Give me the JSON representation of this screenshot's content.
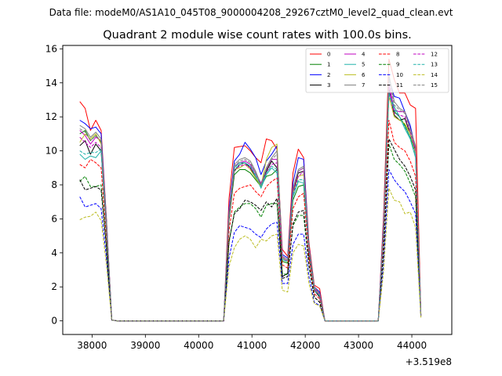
{
  "chart_data": {
    "type": "line",
    "suptitle": "Data file: modeM0/AS1A10_045T08_9000004208_29267cztM0_level2_quad_clean.evt",
    "title": "Quadrant 2 module wise count rates with 100.0s bins.",
    "xlabel": "",
    "ylabel": "",
    "x_offset_label": "+3.519e8",
    "xlim": [
      37450,
      44750
    ],
    "ylim": [
      -0.8,
      16.2
    ],
    "xticks": [
      38000,
      39000,
      40000,
      41000,
      42000,
      43000,
      44000
    ],
    "xtick_labels": [
      "38000",
      "39000",
      "40000",
      "41000",
      "42000",
      "43000",
      "44000"
    ],
    "yticks": [
      0,
      2,
      4,
      6,
      8,
      10,
      12,
      14,
      16
    ],
    "ytick_labels": [
      "0",
      "2",
      "4",
      "6",
      "8",
      "10",
      "12",
      "14",
      "16"
    ],
    "legend_position": "upper right",
    "legend_columns": 4,
    "x": [
      37770,
      37870,
      37970,
      38070,
      38170,
      38270,
      38370,
      38470,
      38570,
      38670,
      38770,
      38870,
      38970,
      39070,
      39170,
      39270,
      39370,
      39470,
      39570,
      39670,
      39770,
      39870,
      39970,
      40070,
      40170,
      40270,
      40370,
      40470,
      40570,
      40670,
      40770,
      40870,
      40970,
      41070,
      41170,
      41270,
      41370,
      41470,
      41570,
      41670,
      41770,
      41870,
      41970,
      42070,
      42170,
      42270,
      42370,
      42470,
      42570,
      42670,
      42770,
      42870,
      42970,
      43070,
      43170,
      43270,
      43370,
      43470,
      43570,
      43670,
      43770,
      43870,
      43970,
      44070,
      44170
    ],
    "series": [
      {
        "name": "0",
        "color": "#ff0000",
        "dash": "solid",
        "values": [
          12.9,
          12.5,
          11.2,
          11.8,
          11.2,
          6.0,
          0.05,
          0,
          0,
          0,
          0,
          0,
          0,
          0,
          0,
          0,
          0,
          0,
          0,
          0,
          0,
          0,
          0,
          0,
          0,
          0,
          0,
          0,
          7.2,
          10.2,
          10.25,
          10.3,
          10.0,
          9.6,
          9.3,
          10.7,
          10.6,
          10.1,
          4.2,
          3.8,
          8.7,
          10.1,
          9.6,
          4.6,
          2.1,
          1.9,
          0,
          0,
          0,
          0,
          0,
          0,
          0,
          0,
          0,
          0,
          0,
          6.2,
          15.4,
          14.2,
          13.4,
          13.4,
          12.7,
          12.5,
          0.4
        ]
      },
      {
        "name": "1",
        "color": "#008000",
        "dash": "solid",
        "values": [
          11.0,
          11.2,
          10.6,
          10.9,
          10.5,
          5.7,
          0.05,
          0,
          0,
          0,
          0,
          0,
          0,
          0,
          0,
          0,
          0,
          0,
          0,
          0,
          0,
          0,
          0,
          0,
          0,
          0,
          0,
          0,
          6.0,
          8.6,
          8.9,
          8.9,
          8.7,
          8.3,
          7.9,
          8.5,
          8.6,
          8.9,
          3.5,
          3.4,
          7.1,
          7.9,
          8.0,
          4.1,
          1.8,
          1.5,
          0,
          0,
          0,
          0,
          0,
          0,
          0,
          0,
          0,
          0,
          0,
          5.2,
          13.5,
          12.3,
          12.0,
          11.5,
          10.8,
          9.9,
          0.3
        ]
      },
      {
        "name": "2",
        "color": "#0000ff",
        "dash": "solid",
        "values": [
          11.8,
          11.6,
          11.3,
          11.4,
          11.0,
          5.9,
          0.05,
          0,
          0,
          0,
          0,
          0,
          0,
          0,
          0,
          0,
          0,
          0,
          0,
          0,
          0,
          0,
          0,
          0,
          0,
          0,
          0,
          0,
          6.6,
          9.4,
          9.8,
          10.5,
          10.1,
          9.6,
          8.6,
          9.4,
          9.8,
          10.3,
          3.9,
          3.7,
          8.1,
          9.6,
          9.5,
          4.4,
          2.0,
          1.7,
          0,
          0,
          0,
          0,
          0,
          0,
          0,
          0,
          0,
          0,
          0,
          5.8,
          14.3,
          13.2,
          13.1,
          12.3,
          11.5,
          10.1,
          0.35
        ]
      },
      {
        "name": "3",
        "color": "#000000",
        "dash": "solid",
        "values": [
          10.3,
          10.6,
          9.8,
          10.4,
          10.0,
          5.3,
          0.05,
          0,
          0,
          0,
          0,
          0,
          0,
          0,
          0,
          0,
          0,
          0,
          0,
          0,
          0,
          0,
          0,
          0,
          0,
          0,
          0,
          0,
          5.9,
          8.8,
          9.2,
          9.3,
          9.0,
          8.4,
          8.0,
          8.8,
          9.4,
          9.0,
          2.6,
          2.8,
          7.6,
          8.7,
          8.8,
          3.8,
          1.8,
          1.4,
          0,
          0,
          0,
          0,
          0,
          0,
          0,
          0,
          0,
          0,
          0,
          5.4,
          13.7,
          12.1,
          11.8,
          11.9,
          11.0,
          10.0,
          0.35
        ]
      },
      {
        "name": "4",
        "color": "#c000c0",
        "dash": "solid",
        "values": [
          11.2,
          10.9,
          10.4,
          10.8,
          10.6,
          5.8,
          0.05,
          0,
          0,
          0,
          0,
          0,
          0,
          0,
          0,
          0,
          0,
          0,
          0,
          0,
          0,
          0,
          0,
          0,
          0,
          0,
          0,
          0,
          6.4,
          9.1,
          9.3,
          9.4,
          9.2,
          8.7,
          8.1,
          8.9,
          9.5,
          9.5,
          3.8,
          3.6,
          7.7,
          8.8,
          9.0,
          4.3,
          1.9,
          1.6,
          0,
          0,
          0,
          0,
          0,
          0,
          0,
          0,
          0,
          0,
          0,
          5.5,
          14.0,
          12.4,
          12.3,
          12.3,
          11.3,
          10.2,
          0.3
        ]
      },
      {
        "name": "5",
        "color": "#20b2aa",
        "dash": "solid",
        "values": [
          9.8,
          9.5,
          9.7,
          9.6,
          10.0,
          5.4,
          0.05,
          0,
          0,
          0,
          0,
          0,
          0,
          0,
          0,
          0,
          0,
          0,
          0,
          0,
          0,
          0,
          0,
          0,
          0,
          0,
          0,
          0,
          6.2,
          9.0,
          9.3,
          9.3,
          9.1,
          8.5,
          7.8,
          8.6,
          9.0,
          8.7,
          3.6,
          3.5,
          7.3,
          8.2,
          8.1,
          4.2,
          1.8,
          1.5,
          0,
          0,
          0,
          0,
          0,
          0,
          0,
          0,
          0,
          0,
          0,
          5.3,
          13.4,
          12.6,
          12.0,
          11.3,
          10.7,
          9.6,
          0.3
        ]
      },
      {
        "name": "6",
        "color": "#bcbd22",
        "dash": "solid",
        "values": [
          10.5,
          11.0,
          10.7,
          11.0,
          10.4,
          5.7,
          0.05,
          0,
          0,
          0,
          0,
          0,
          0,
          0,
          0,
          0,
          0,
          0,
          0,
          0,
          0,
          0,
          0,
          0,
          0,
          0,
          0,
          0,
          6.1,
          8.9,
          9.0,
          9.2,
          8.9,
          8.4,
          7.9,
          9.5,
          10.2,
          10.4,
          3.7,
          3.5,
          7.5,
          8.5,
          8.6,
          4.2,
          1.9,
          1.5,
          0,
          0,
          0,
          0,
          0,
          0,
          0,
          0,
          0,
          0,
          0,
          5.4,
          13.2,
          12.0,
          11.8,
          11.6,
          11.0,
          9.9,
          0.3
        ]
      },
      {
        "name": "7",
        "color": "#808080",
        "dash": "solid",
        "values": [
          11.5,
          11.3,
          10.8,
          11.1,
          10.7,
          5.8,
          0.05,
          0,
          0,
          0,
          0,
          0,
          0,
          0,
          0,
          0,
          0,
          0,
          0,
          0,
          0,
          0,
          0,
          0,
          0,
          0,
          0,
          0,
          6.3,
          9.2,
          9.5,
          9.6,
          9.4,
          8.8,
          8.0,
          9.0,
          9.6,
          10.0,
          3.8,
          3.6,
          7.8,
          8.9,
          9.1,
          4.3,
          2.0,
          1.6,
          0,
          0,
          0,
          0,
          0,
          0,
          0,
          0,
          0,
          0,
          0,
          5.6,
          14.5,
          12.9,
          12.5,
          12.3,
          11.3,
          10.3,
          0.3
        ]
      },
      {
        "name": "8",
        "color": "#ff0000",
        "dash": "dashed",
        "values": [
          9.2,
          9.0,
          9.5,
          9.3,
          9.0,
          4.9,
          0.05,
          0,
          0,
          0,
          0,
          0,
          0,
          0,
          0,
          0,
          0,
          0,
          0,
          0,
          0,
          0,
          0,
          0,
          0,
          0,
          0,
          0,
          5.3,
          7.5,
          7.8,
          7.9,
          8.0,
          7.6,
          7.3,
          7.9,
          8.2,
          8.4,
          3.3,
          3.1,
          6.6,
          7.3,
          7.5,
          3.8,
          1.6,
          1.3,
          0,
          0,
          0,
          0,
          0,
          0,
          0,
          0,
          0,
          0,
          0,
          4.7,
          11.8,
          10.5,
          10.2,
          10.0,
          9.4,
          8.5,
          0.3
        ]
      },
      {
        "name": "9",
        "color": "#008000",
        "dash": "dashed",
        "values": [
          8.2,
          8.5,
          7.9,
          7.9,
          8.0,
          4.4,
          0.05,
          0,
          0,
          0,
          0,
          0,
          0,
          0,
          0,
          0,
          0,
          0,
          0,
          0,
          0,
          0,
          0,
          0,
          0,
          0,
          0,
          0,
          4.6,
          6.4,
          6.7,
          6.9,
          6.9,
          6.6,
          6.1,
          6.8,
          6.9,
          6.9,
          2.8,
          2.7,
          5.6,
          6.2,
          6.2,
          3.2,
          1.4,
          1.1,
          0,
          0,
          0,
          0,
          0,
          0,
          0,
          0,
          0,
          0,
          0,
          4.0,
          10.4,
          9.5,
          9.2,
          8.8,
          8.1,
          7.3,
          0.25
        ]
      },
      {
        "name": "10",
        "color": "#0000ff",
        "dash": "dashed",
        "values": [
          7.3,
          6.7,
          6.8,
          6.9,
          6.6,
          3.7,
          0.05,
          0,
          0,
          0,
          0,
          0,
          0,
          0,
          0,
          0,
          0,
          0,
          0,
          0,
          0,
          0,
          0,
          0,
          0,
          0,
          0,
          0,
          3.7,
          5.2,
          5.6,
          5.5,
          5.4,
          5.1,
          4.9,
          5.4,
          5.7,
          5.8,
          2.2,
          2.2,
          4.5,
          5.1,
          5.1,
          2.6,
          1.1,
          0.9,
          0,
          0,
          0,
          0,
          0,
          0,
          0,
          0,
          0,
          0,
          0,
          3.3,
          8.9,
          8.3,
          7.9,
          7.6,
          7.0,
          6.3,
          0.2
        ]
      },
      {
        "name": "11",
        "color": "#000000",
        "dash": "dashed",
        "values": [
          8.3,
          7.7,
          7.8,
          7.9,
          7.7,
          4.3,
          0.05,
          0,
          0,
          0,
          0,
          0,
          0,
          0,
          0,
          0,
          0,
          0,
          0,
          0,
          0,
          0,
          0,
          0,
          0,
          0,
          0,
          0,
          4.7,
          6.3,
          6.6,
          7.1,
          7.0,
          6.8,
          6.5,
          7.0,
          6.7,
          7.2,
          2.5,
          2.6,
          5.7,
          6.4,
          6.5,
          3.3,
          1.4,
          1.1,
          0,
          0,
          0,
          0,
          0,
          0,
          0,
          0,
          0,
          0,
          0,
          4.1,
          10.7,
          10.1,
          9.5,
          9.1,
          8.5,
          7.7,
          0.25
        ]
      },
      {
        "name": "12",
        "color": "#c000c0",
        "dash": "dashed",
        "values": [
          10.8,
          10.5,
          10.2,
          10.5,
          10.2,
          5.6,
          0.05,
          0,
          0,
          0,
          0,
          0,
          0,
          0,
          0,
          0,
          0,
          0,
          0,
          0,
          0,
          0,
          0,
          0,
          0,
          0,
          0,
          0,
          6.2,
          8.9,
          9.1,
          9.2,
          9.0,
          8.6,
          8.0,
          8.7,
          9.2,
          9.3,
          3.7,
          3.5,
          7.5,
          8.5,
          8.8,
          4.2,
          1.9,
          1.5,
          0,
          0,
          0,
          0,
          0,
          0,
          0,
          0,
          0,
          0,
          0,
          5.4,
          13.7,
          12.2,
          12.1,
          12.0,
          11.1,
          10.0,
          0.3
        ]
      },
      {
        "name": "13",
        "color": "#20b2aa",
        "dash": "dashed",
        "values": [
          10.0,
          9.8,
          9.9,
          9.9,
          10.1,
          5.5,
          0.05,
          0,
          0,
          0,
          0,
          0,
          0,
          0,
          0,
          0,
          0,
          0,
          0,
          0,
          0,
          0,
          0,
          0,
          0,
          0,
          0,
          0,
          6.2,
          8.9,
          9.2,
          9.3,
          9.1,
          8.6,
          7.9,
          8.7,
          9.1,
          8.9,
          3.6,
          3.5,
          7.4,
          8.3,
          8.3,
          4.2,
          1.8,
          1.5,
          0,
          0,
          0,
          0,
          0,
          0,
          0,
          0,
          0,
          0,
          0,
          5.3,
          13.3,
          12.4,
          12.0,
          11.4,
          10.8,
          9.7,
          0.3
        ]
      },
      {
        "name": "14",
        "color": "#bcbd22",
        "dash": "dashed",
        "values": [
          5.95,
          6.1,
          6.15,
          6.4,
          5.9,
          3.3,
          0.05,
          0,
          0,
          0,
          0,
          0,
          0,
          0,
          0,
          0,
          0,
          0,
          0,
          0,
          0,
          0,
          0,
          0,
          0,
          0,
          0,
          0,
          3.2,
          4.3,
          4.8,
          5.0,
          4.8,
          4.3,
          4.8,
          4.7,
          5.0,
          5.1,
          1.8,
          1.7,
          4.0,
          4.5,
          4.4,
          2.2,
          1.0,
          0.9,
          0,
          0,
          0,
          0,
          0,
          0,
          0,
          0,
          0,
          0,
          0,
          2.9,
          7.8,
          7.1,
          7.0,
          6.3,
          6.4,
          5.5,
          0.2
        ]
      },
      {
        "name": "15",
        "color": "#808080",
        "dash": "dashed",
        "values": [
          11.3,
          11.1,
          10.6,
          10.9,
          10.6,
          5.8,
          0.05,
          0,
          0,
          0,
          0,
          0,
          0,
          0,
          0,
          0,
          0,
          0,
          0,
          0,
          0,
          0,
          0,
          0,
          0,
          0,
          0,
          0,
          6.3,
          9.1,
          9.4,
          9.5,
          9.3,
          8.7,
          8.0,
          8.9,
          9.5,
          9.8,
          3.7,
          3.6,
          7.7,
          8.8,
          9.0,
          4.3,
          2.0,
          1.6,
          0,
          0,
          0,
          0,
          0,
          0,
          0,
          0,
          0,
          0,
          0,
          5.5,
          14.3,
          12.7,
          12.4,
          12.2,
          11.2,
          10.2,
          0.3
        ]
      }
    ]
  }
}
